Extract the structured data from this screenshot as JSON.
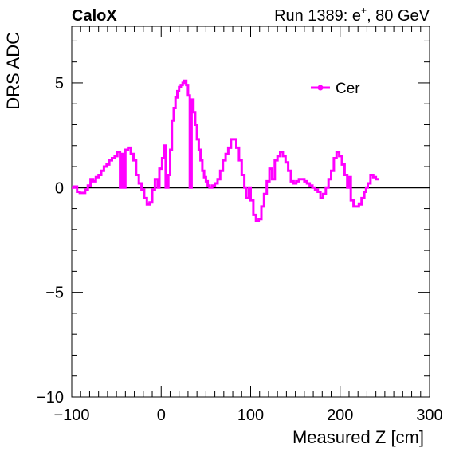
{
  "header": {
    "left_label": "CaloX",
    "right_label_prefix": "Run 1389: e",
    "right_label_sup": "+",
    "right_label_suffix": ", 80 GeV"
  },
  "chart_data": {
    "type": "line",
    "xlabel": "Measured Z [cm]",
    "ylabel": "DRS ADC",
    "xlim": [
      -100,
      300
    ],
    "ylim": [
      -10,
      7.7
    ],
    "xticks": [
      -100,
      0,
      100,
      200,
      300
    ],
    "xtick_labels": [
      "−100",
      "0",
      "100",
      "200",
      "300"
    ],
    "yticks": [
      -10,
      -5,
      0,
      5
    ],
    "ytick_labels": [
      "−10",
      "−5",
      "0",
      "5"
    ],
    "grid": false,
    "legend_position": "top-right",
    "reference_line_y": 0,
    "colors": {
      "series": "#ff00ff",
      "reference": "#000000"
    },
    "series": [
      {
        "name": "Cer",
        "style": "step",
        "points": [
          [
            -100,
            0
          ],
          [
            -97,
            0.05
          ],
          [
            -94,
            -0.2
          ],
          [
            -91,
            -0.25
          ],
          [
            -88,
            -0.25
          ],
          [
            -85,
            -0.1
          ],
          [
            -82,
            0.1
          ],
          [
            -79,
            0.4
          ],
          [
            -76,
            0.3
          ],
          [
            -73,
            0.5
          ],
          [
            -70,
            0.6
          ],
          [
            -67,
            0.8
          ],
          [
            -64,
            1.0
          ],
          [
            -61,
            1.1
          ],
          [
            -58,
            1.3
          ],
          [
            -55,
            1.4
          ],
          [
            -52,
            1.5
          ],
          [
            -49,
            1.7
          ],
          [
            -46,
            0.0
          ],
          [
            -44,
            1.6
          ],
          [
            -42,
            0.0
          ],
          [
            -40,
            1.8
          ],
          [
            -37,
            1.9
          ],
          [
            -34,
            1.6
          ],
          [
            -31,
            1.3
          ],
          [
            -28,
            0.6
          ],
          [
            -25,
            0.2
          ],
          [
            -22,
            -0.1
          ],
          [
            -19,
            -0.5
          ],
          [
            -16,
            -0.8
          ],
          [
            -13,
            -0.7
          ],
          [
            -10,
            -0.1
          ],
          [
            -7,
            0.4
          ],
          [
            -4,
            0.0
          ],
          [
            -2,
            0.9
          ],
          [
            1,
            1.4
          ],
          [
            3,
            2.0
          ],
          [
            5,
            0.0
          ],
          [
            8,
            0.6
          ],
          [
            10,
            1.8
          ],
          [
            12,
            3.2
          ],
          [
            14,
            3.8
          ],
          [
            16,
            4.3
          ],
          [
            18,
            4.6
          ],
          [
            20,
            4.8
          ],
          [
            22,
            4.9
          ],
          [
            24,
            5.0
          ],
          [
            26,
            5.1
          ],
          [
            28,
            4.9
          ],
          [
            30,
            4.4
          ],
          [
            32,
            0.0
          ],
          [
            34,
            4.2
          ],
          [
            36,
            3.6
          ],
          [
            38,
            3.0
          ],
          [
            40,
            2.3
          ],
          [
            42,
            1.8
          ],
          [
            44,
            1.3
          ],
          [
            46,
            0.8
          ],
          [
            48,
            0.5
          ],
          [
            50,
            0.3
          ],
          [
            52,
            0.1
          ],
          [
            54,
            0.0
          ],
          [
            57,
            0.1
          ],
          [
            60,
            0.2
          ],
          [
            63,
            0.4
          ],
          [
            66,
            0.8
          ],
          [
            69,
            1.3
          ],
          [
            72,
            1.6
          ],
          [
            75,
            1.9
          ],
          [
            78,
            2.3
          ],
          [
            81,
            2.3
          ],
          [
            84,
            1.9
          ],
          [
            87,
            1.3
          ],
          [
            90,
            0.6
          ],
          [
            93,
            0.0
          ],
          [
            95,
            -0.5
          ],
          [
            98,
            0.0
          ],
          [
            100,
            -0.6
          ],
          [
            103,
            -1.3
          ],
          [
            106,
            -1.6
          ],
          [
            109,
            -1.5
          ],
          [
            112,
            -0.9
          ],
          [
            115,
            -0.3
          ],
          [
            118,
            0.3
          ],
          [
            121,
            0.9
          ],
          [
            124,
            0.4
          ],
          [
            127,
            1.3
          ],
          [
            130,
            1.5
          ],
          [
            133,
            1.7
          ],
          [
            136,
            1.5
          ],
          [
            139,
            1.2
          ],
          [
            142,
            0.8
          ],
          [
            145,
            0.3
          ],
          [
            148,
            0.2
          ],
          [
            151,
            0.3
          ],
          [
            154,
            0.4
          ],
          [
            157,
            0.4
          ],
          [
            160,
            0.3
          ],
          [
            163,
            0.2
          ],
          [
            166,
            0.1
          ],
          [
            169,
            0.0
          ],
          [
            172,
            -0.1
          ],
          [
            175,
            -0.2
          ],
          [
            178,
            -0.5
          ],
          [
            181,
            -0.3
          ],
          [
            184,
            0.0
          ],
          [
            187,
            0.4
          ],
          [
            190,
            0.8
          ],
          [
            193,
            1.4
          ],
          [
            196,
            1.7
          ],
          [
            199,
            1.5
          ],
          [
            202,
            1.1
          ],
          [
            205,
            0.6
          ],
          [
            208,
            0.0
          ],
          [
            210,
            0.5
          ],
          [
            212,
            -0.6
          ],
          [
            215,
            -0.9
          ],
          [
            218,
            -0.9
          ],
          [
            221,
            -0.8
          ],
          [
            224,
            -0.5
          ],
          [
            227,
            -0.2
          ],
          [
            229,
            0.0
          ],
          [
            231,
            0.2
          ],
          [
            234,
            0.6
          ],
          [
            237,
            0.5
          ],
          [
            240,
            0.4
          ]
        ]
      }
    ]
  }
}
